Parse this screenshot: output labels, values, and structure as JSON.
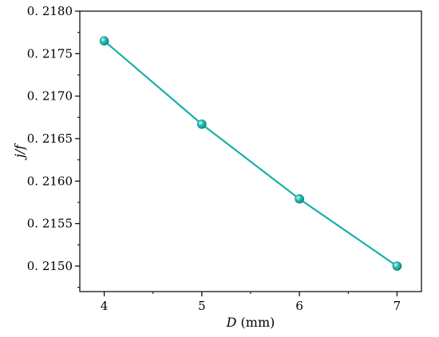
{
  "chart_data": {
    "type": "line",
    "x": [
      4,
      5,
      6,
      7
    ],
    "series": [
      {
        "values": [
          0.21765,
          0.21667,
          0.21579,
          0.215
        ]
      }
    ],
    "xlabel_var": "D",
    "xlabel_unit": " (mm)",
    "ylabel": "j/f",
    "xlim": [
      3.75,
      7.25
    ],
    "ylim": [
      0.2147,
      0.218
    ],
    "x_ticks": [
      4,
      5,
      6,
      7
    ],
    "x_tick_labels": [
      "4",
      "5",
      "6",
      "7"
    ],
    "y_ticks": [
      0.215,
      0.2155,
      0.216,
      0.2165,
      0.217,
      0.2175,
      0.218
    ],
    "y_tick_labels": [
      "0. 2150",
      "0. 2155",
      "0. 2160",
      "0. 2165",
      "0. 2170",
      "0. 2175",
      "0. 2180"
    ],
    "grid": false,
    "legend": "none",
    "colors": {
      "line": "#16b0a5",
      "marker": "#16b0a5",
      "marker_highlight": "#bff5ef"
    }
  }
}
